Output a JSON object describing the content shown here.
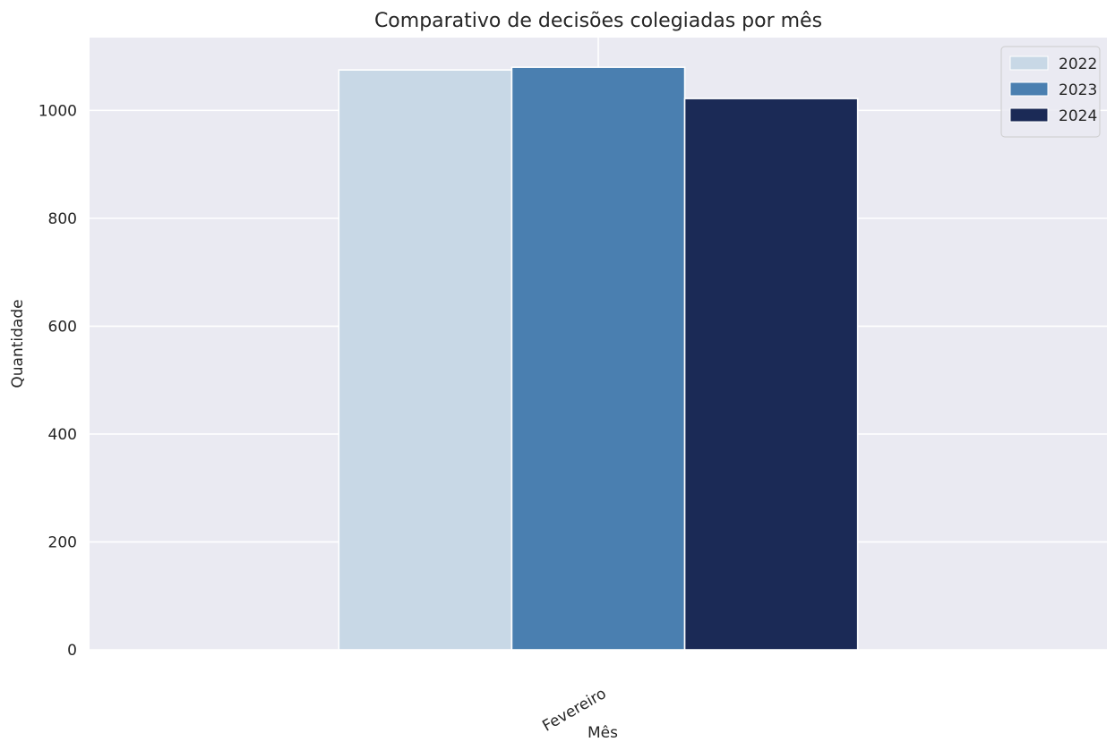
{
  "chart_data": {
    "type": "bar",
    "title": "Comparativo de decisões colegiadas por mês",
    "xlabel": "Mês",
    "ylabel": "Quantidade",
    "categories": [
      "Fevereiro"
    ],
    "series": [
      {
        "name": "2022",
        "values": [
          1075
        ],
        "color": "#c8d8e6"
      },
      {
        "name": "2023",
        "values": [
          1080
        ],
        "color": "#4a7fb0"
      },
      {
        "name": "2024",
        "values": [
          1022
        ],
        "color": "#1b2a56"
      }
    ],
    "ylim": [
      0,
      1135
    ],
    "yticks": [
      0,
      200,
      400,
      600,
      800,
      1000
    ],
    "grid": true,
    "legend": "top-right"
  }
}
